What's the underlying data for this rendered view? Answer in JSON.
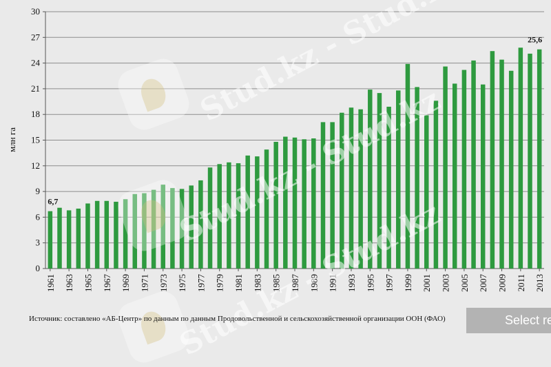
{
  "chart_data": {
    "type": "bar",
    "ylabel": "млн га",
    "ylim": [
      0,
      30
    ],
    "yticks": [
      0,
      3,
      6,
      9,
      12,
      15,
      18,
      21,
      24,
      27,
      30
    ],
    "grid": true,
    "bar_color": "#2e9a3f",
    "categories": [
      "1961",
      "1962",
      "1963",
      "1964",
      "1965",
      "1966",
      "1967",
      "1968",
      "1969",
      "1970",
      "1971",
      "1972",
      "1973",
      "1974",
      "1975",
      "1976",
      "1977",
      "1978",
      "1979",
      "1980",
      "1981",
      "1982",
      "1983",
      "1984",
      "1985",
      "1986",
      "1987",
      "1988",
      "1989",
      "1990",
      "1991",
      "1992",
      "1993",
      "1994",
      "1995",
      "1996",
      "1997",
      "1998",
      "1999",
      "2000",
      "2001",
      "2002",
      "2003",
      "2004",
      "2005",
      "2006",
      "2007",
      "2008",
      "2009",
      "2010",
      "2011",
      "2012",
      "2013"
    ],
    "tick_labels": [
      "1961",
      "1963",
      "1965",
      "1967",
      "1969",
      "1971",
      "1973",
      "1975",
      "1977",
      "1979",
      "1981",
      "1983",
      "1985",
      "1987",
      "1989",
      "1991",
      "1993",
      "1995",
      "1997",
      "1999",
      "2001",
      "2003",
      "2005",
      "2007",
      "2009",
      "2011",
      "2013"
    ],
    "values": [
      6.7,
      7.1,
      6.8,
      7.0,
      7.6,
      7.9,
      7.9,
      7.8,
      8.1,
      8.7,
      8.8,
      9.2,
      9.8,
      9.4,
      9.3,
      9.7,
      10.3,
      11.8,
      12.2,
      12.4,
      12.3,
      13.2,
      13.1,
      13.9,
      14.8,
      15.4,
      15.3,
      15.1,
      15.2,
      17.1,
      17.1,
      18.2,
      18.8,
      18.6,
      20.9,
      20.5,
      18.9,
      20.8,
      23.9,
      21.2,
      17.9,
      19.6,
      23.6,
      21.6,
      23.2,
      24.3,
      21.5,
      25.4,
      24.4,
      23.1,
      25.8,
      25.1,
      25.6
    ],
    "annotations": [
      {
        "category": "1961",
        "text": "6,7"
      },
      {
        "category": "2013",
        "text": "25,6"
      }
    ]
  },
  "source_note": "Источник: составлено «АБ-Центр» по данным по данным Продовольственной и сельскохозяйственной организации ООН (ФАО)",
  "watermark_text": "Stud.kz - Stud.kz",
  "select_button_label": "Select re"
}
